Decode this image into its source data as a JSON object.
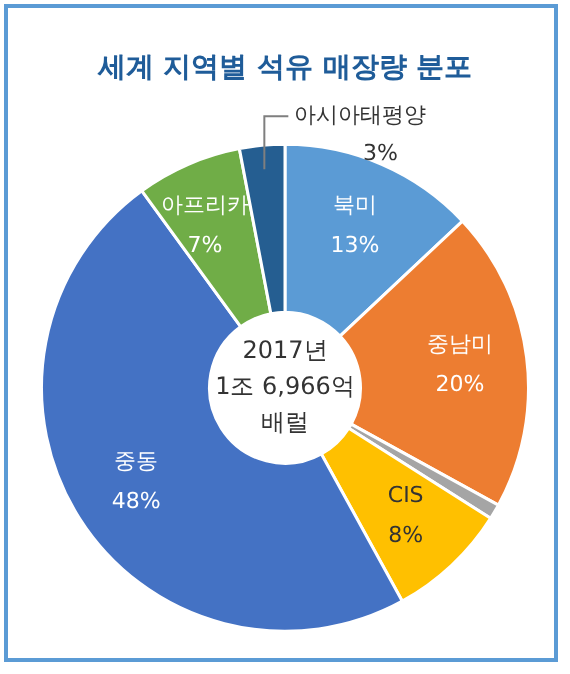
{
  "chart_data": {
    "type": "donut",
    "title": "세계 지역별 석유 매장량 분포",
    "categories": [
      "북미",
      "중남미",
      null,
      "CIS",
      "중동",
      "아프리카",
      "아시아태평양"
    ],
    "values": [
      13,
      20,
      1,
      8,
      48,
      7,
      3
    ],
    "value_labels": [
      "13%",
      "20%",
      null,
      "8%",
      "48%",
      "7%",
      "3%"
    ],
    "colors": [
      "#5b9bd5",
      "#ed7d31",
      "#a5a5a5",
      "#ffc000",
      "#4472c4",
      "#70ad47",
      "#255e91"
    ],
    "annotations": [
      "2017년",
      "1조 6,966억",
      "배럴"
    ],
    "legend": false
  }
}
